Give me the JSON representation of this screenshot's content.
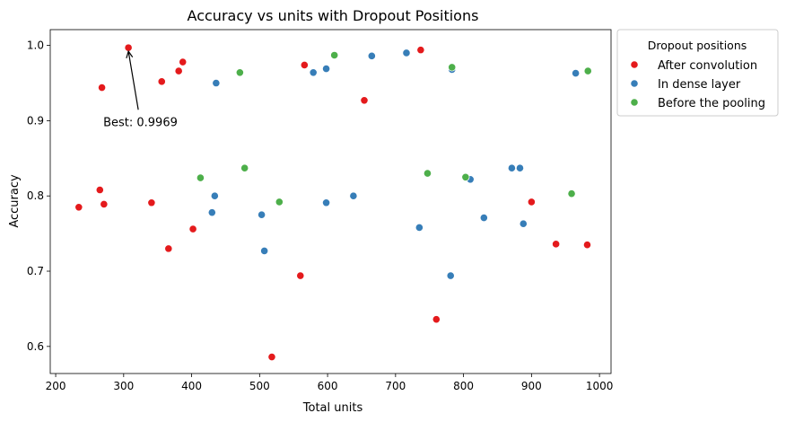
{
  "chart_data": {
    "type": "scatter",
    "title": "Accuracy vs units with Dropout Positions",
    "xlabel": "Total units",
    "ylabel": "Accuracy",
    "xlim": [
      192,
      1017
    ],
    "ylim": [
      0.564,
      1.021
    ],
    "xticks": [
      200,
      300,
      400,
      500,
      600,
      700,
      800,
      900,
      1000
    ],
    "yticks": [
      0.6,
      0.7,
      0.8,
      0.9,
      1.0
    ],
    "xtick_labels": [
      "200",
      "300",
      "400",
      "500",
      "600",
      "700",
      "800",
      "900",
      "1000"
    ],
    "ytick_labels": [
      "0.6",
      "0.7",
      "0.8",
      "0.9",
      "1.0"
    ],
    "grid": false,
    "legend": {
      "title": "Dropout positions",
      "placement": "outside-right-top"
    },
    "annotation": {
      "text": "Best: 0.9969",
      "point": [
        307,
        0.997
      ],
      "text_at": [
        270,
        0.893
      ]
    },
    "series": [
      {
        "name": "After convolution",
        "color": "#e41a1c",
        "points": [
          [
            307,
            0.997
          ],
          [
            268,
            0.944
          ],
          [
            356,
            0.952
          ],
          [
            381,
            0.966
          ],
          [
            387,
            0.978
          ],
          [
            566,
            0.974
          ],
          [
            654,
            0.927
          ],
          [
            737,
            0.994
          ],
          [
            234,
            0.785
          ],
          [
            265,
            0.808
          ],
          [
            271,
            0.789
          ],
          [
            341,
            0.791
          ],
          [
            366,
            0.73
          ],
          [
            402,
            0.756
          ],
          [
            560,
            0.694
          ],
          [
            518,
            0.586
          ],
          [
            760,
            0.636
          ],
          [
            900,
            0.792
          ],
          [
            936,
            0.736
          ],
          [
            982,
            0.735
          ]
        ]
      },
      {
        "name": "In dense layer",
        "color": "#377eb8",
        "points": [
          [
            436,
            0.95
          ],
          [
            579,
            0.964
          ],
          [
            598,
            0.969
          ],
          [
            665,
            0.986
          ],
          [
            716,
            0.99
          ],
          [
            783,
            0.968
          ],
          [
            965,
            0.963
          ],
          [
            434,
            0.8
          ],
          [
            430,
            0.778
          ],
          [
            503,
            0.775
          ],
          [
            507,
            0.727
          ],
          [
            598,
            0.791
          ],
          [
            638,
            0.8
          ],
          [
            735,
            0.758
          ],
          [
            781,
            0.694
          ],
          [
            810,
            0.822
          ],
          [
            830,
            0.771
          ],
          [
            871,
            0.837
          ],
          [
            883,
            0.837
          ],
          [
            888,
            0.763
          ]
        ]
      },
      {
        "name": "Before the pooling",
        "color": "#4daf4a",
        "points": [
          [
            610,
            0.987
          ],
          [
            471,
            0.964
          ],
          [
            783,
            0.971
          ],
          [
            983,
            0.966
          ],
          [
            413,
            0.824
          ],
          [
            478,
            0.837
          ],
          [
            529,
            0.792
          ],
          [
            747,
            0.83
          ],
          [
            803,
            0.825
          ],
          [
            959,
            0.803
          ]
        ]
      }
    ]
  }
}
